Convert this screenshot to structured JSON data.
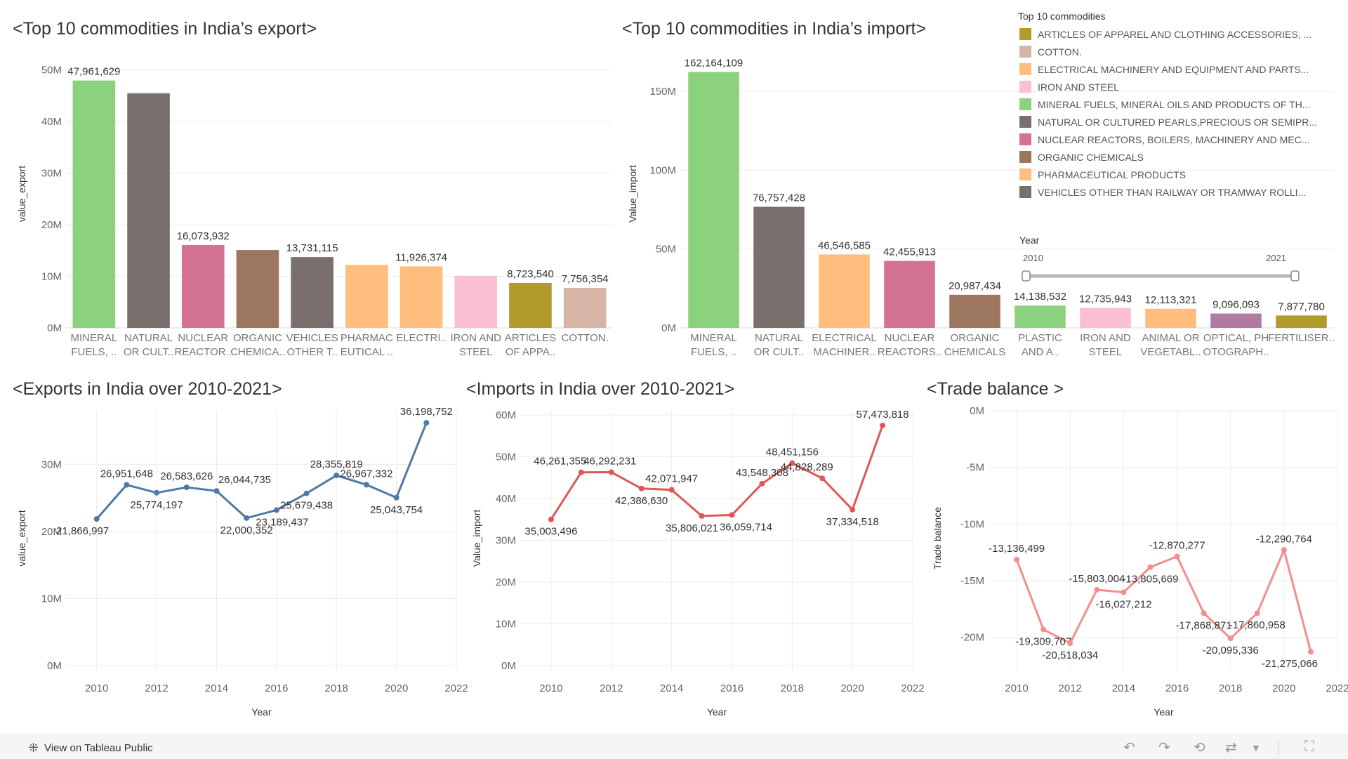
{
  "titles": {
    "export_top10": "<Top 10 commodities in India’s export>",
    "import_top10": "<Top 10 commodities in India’s import>",
    "exports_over": "<Exports in India over 2010-2021>",
    "imports_over": "<Imports in India over 2010-2021>",
    "trade_balance": "<Trade balance >"
  },
  "legend": {
    "title": "Top 10 commodities",
    "items": [
      {
        "label": "ARTICLES OF APPAREL AND CLOTHING ACCESSORIES, ...",
        "color": "#b39a2d"
      },
      {
        "label": "COTTON.",
        "color": "#d7b5a6"
      },
      {
        "label": "ELECTRICAL MACHINERY AND EQUIPMENT AND PARTS...",
        "color": "#ffbe7d"
      },
      {
        "label": "IRON AND STEEL",
        "color": "#fabfd2"
      },
      {
        "label": "MINERAL FUELS, MINERAL OILS AND PRODUCTS OF TH...",
        "color": "#8cd17d"
      },
      {
        "label": "NATURAL OR CULTURED PEARLS,PRECIOUS OR SEMIPR...",
        "color": "#79706e"
      },
      {
        "label": "NUCLEAR REACTORS, BOILERS, MACHINERY AND MEC...",
        "color": "#d37295"
      },
      {
        "label": "ORGANIC CHEMICALS",
        "color": "#9d7660"
      },
      {
        "label": "PHARMACEUTICAL PRODUCTS",
        "color": "#ffbe7d"
      },
      {
        "label": "VEHICLES OTHER THAN RAILWAY OR TRAMWAY ROLLI...",
        "color": "#79706e"
      }
    ]
  },
  "year_filter": {
    "title": "Year",
    "min_label": "2010",
    "max_label": "2021"
  },
  "footer": {
    "tableau_link": "View on Tableau Public"
  },
  "chart_data": [
    {
      "id": "export_bar",
      "type": "bar",
      "ylabel": "value_export",
      "ylim": [
        0,
        52000000
      ],
      "yticks": [
        0,
        10000000,
        20000000,
        30000000,
        40000000,
        50000000
      ],
      "ytick_labels": [
        "0M",
        "10M",
        "20M",
        "30M",
        "40M",
        "50M"
      ],
      "categories": [
        [
          "MINERAL",
          "FUELS, .."
        ],
        [
          "NATURAL",
          "OR CULT.."
        ],
        [
          "NUCLEAR",
          "REACTOR.."
        ],
        [
          "ORGANIC",
          "CHEMICA.."
        ],
        [
          "VEHICLES",
          "OTHER T.."
        ],
        [
          "PHARMAC",
          "EUTICAL .."
        ],
        [
          "ELECTRI..",
          ""
        ],
        [
          "IRON AND",
          "STEEL"
        ],
        [
          "ARTICLES",
          "OF APPA.."
        ],
        [
          "COTTON.",
          ""
        ]
      ],
      "values": [
        47961629,
        45500000,
        16073932,
        15100000,
        13731115,
        12200000,
        11926374,
        10100000,
        8723540,
        7756354
      ],
      "data_labels": [
        "47,961,629",
        "",
        "16,073,932",
        "",
        "13,731,115",
        "",
        "11,926,374",
        "",
        "8,723,540",
        "7,756,354"
      ],
      "colors": [
        "#8cd17d",
        "#79706e",
        "#d37295",
        "#9d7660",
        "#79706e",
        "#ffbe7d",
        "#ffbe7d",
        "#fabfd2",
        "#b39a2d",
        "#d7b5a6"
      ]
    },
    {
      "id": "import_bar",
      "type": "bar",
      "ylabel": "Value_import",
      "ylim": [
        0,
        170000000
      ],
      "yticks": [
        0,
        50000000,
        100000000,
        150000000
      ],
      "ytick_labels": [
        "0M",
        "50M",
        "100M",
        "150M"
      ],
      "categories": [
        [
          "MINERAL",
          "FUELS, .."
        ],
        [
          "NATURAL",
          "OR CULT.."
        ],
        [
          "ELECTRICAL",
          "MACHINER.."
        ],
        [
          "NUCLEAR",
          "REACTORS.."
        ],
        [
          "ORGANIC",
          "CHEMICALS"
        ],
        [
          "PLASTIC",
          "AND A.."
        ],
        [
          "IRON AND",
          "STEEL"
        ],
        [
          "ANIMAL OR",
          "VEGETABL.."
        ],
        [
          "OPTICAL, PH",
          "OTOGRAPH.."
        ],
        [
          "FERTILISER..",
          ""
        ]
      ],
      "values": [
        162164109,
        76757428,
        46546585,
        42455913,
        20987434,
        14138532,
        12735943,
        12113321,
        9096093,
        7877780
      ],
      "data_labels": [
        "162,164,109",
        "76,757,428",
        "46,546,585",
        "42,455,913",
        "20,987,434",
        "14,138,532",
        "12,735,943",
        "12,113,321",
        "9,096,093",
        "7,877,780"
      ],
      "colors": [
        "#8cd17d",
        "#79706e",
        "#ffbe7d",
        "#d37295",
        "#9d7660",
        "#8cd17d",
        "#fabfd2",
        "#ffbe7d",
        "#b07aa1",
        "#b39a2d"
      ]
    },
    {
      "id": "export_line",
      "type": "line",
      "xlabel": "Year",
      "ylabel": "value_export",
      "xlim": [
        2009,
        2022
      ],
      "xticks": [
        2010,
        2012,
        2014,
        2016,
        2018,
        2020,
        2022
      ],
      "ylim": [
        0,
        38000000
      ],
      "yticks": [
        0,
        10000000,
        20000000,
        30000000
      ],
      "ytick_labels": [
        "0M",
        "10M",
        "20M",
        "30M"
      ],
      "color": "#4e79a7",
      "x": [
        2010,
        2011,
        2012,
        2013,
        2014,
        2015,
        2016,
        2017,
        2018,
        2019,
        2020,
        2021
      ],
      "values": [
        21866997,
        26951648,
        25774197,
        26583626,
        26044735,
        22000352,
        23189437,
        25679438,
        28355819,
        26967332,
        25043754,
        36198752
      ],
      "data_labels": [
        "21,866,997",
        "26,951,648",
        "25,774,197",
        "26,583,626",
        "26,044,735",
        "22,000,352",
        "23,189,437",
        "25,679,438",
        "28,355,819",
        "26,967,332",
        "25,043,754",
        "36,198,752"
      ]
    },
    {
      "id": "import_line",
      "type": "line",
      "xlabel": "Year",
      "ylabel": "Value_import",
      "xlim": [
        2009,
        2022
      ],
      "xticks": [
        2010,
        2012,
        2014,
        2016,
        2018,
        2020,
        2022
      ],
      "ylim": [
        0,
        61000000
      ],
      "yticks": [
        0,
        10000000,
        20000000,
        30000000,
        40000000,
        50000000,
        60000000
      ],
      "ytick_labels": [
        "0M",
        "10M",
        "20M",
        "30M",
        "40M",
        "50M",
        "60M"
      ],
      "color": "#e15759",
      "x": [
        2010,
        2011,
        2012,
        2013,
        2014,
        2015,
        2016,
        2017,
        2018,
        2019,
        2020,
        2021
      ],
      "values": [
        35003496,
        46261355,
        46292231,
        42386630,
        42071947,
        35806021,
        36059714,
        43548308,
        48451156,
        44828289,
        37334518,
        57473818
      ],
      "data_labels": [
        "35,003,496",
        "46,261,355",
        "46,292,231",
        "42,386,630",
        "42,071,947",
        "35,806,021",
        "36,059,714",
        "43,548,308",
        "48,451,156",
        "44,828,289",
        "37,334,518",
        "57,473,818"
      ]
    },
    {
      "id": "trade_balance",
      "type": "line",
      "xlabel": "Year",
      "ylabel": "Trade balance",
      "xlim": [
        2009,
        2022
      ],
      "xticks": [
        2010,
        2012,
        2014,
        2016,
        2018,
        2020,
        2022
      ],
      "ylim": [
        -22500000,
        0
      ],
      "yticks": [
        0,
        -5000000,
        -10000000,
        -15000000,
        -20000000
      ],
      "ytick_labels": [
        "0M",
        "-5M",
        "-10M",
        "-15M",
        "-20M"
      ],
      "color": "#f28e8c",
      "x": [
        2010,
        2011,
        2012,
        2013,
        2014,
        2015,
        2016,
        2017,
        2018,
        2019,
        2020,
        2021
      ],
      "values": [
        -13136499,
        -19309707,
        -20518034,
        -15803004,
        -16027212,
        -13805669,
        -12870277,
        -17868871,
        -20095336,
        -17860958,
        -12290764,
        -21275066
      ],
      "data_labels": [
        "-13,136,499",
        "-19,309,707",
        "-20,518,034",
        "-15,803,004",
        "-16,027,212",
        "-13,805,669",
        "-12,870,277",
        "-17,868,871",
        "-20,095,336",
        "-17,860,958",
        "-12,290,764",
        "-21,275,066"
      ]
    }
  ]
}
